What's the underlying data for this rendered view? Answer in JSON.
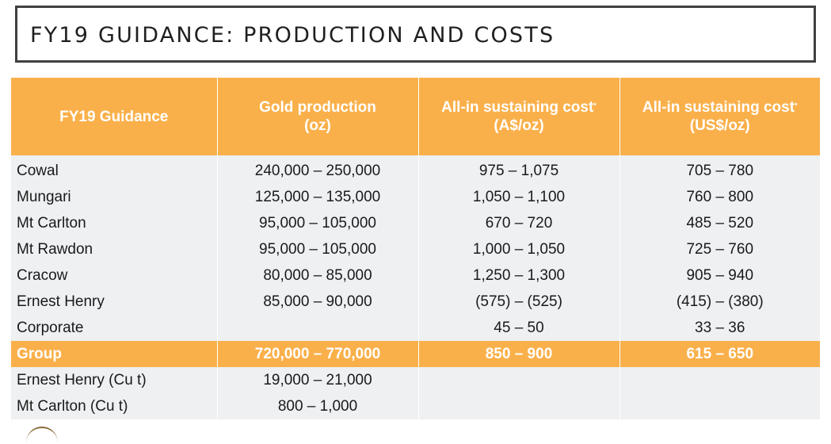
{
  "title": "FY19 GUIDANCE: PRODUCTION AND COSTS",
  "table": {
    "headers": [
      {
        "line1": "FY19 Guidance",
        "line2": "",
        "sup": ""
      },
      {
        "line1": "Gold production",
        "line2": "(oz)",
        "sup": ""
      },
      {
        "line1": "All-in sustaining cost",
        "line2": "(A$/oz)",
        "sup": "*"
      },
      {
        "line1": "All-in sustaining cost",
        "line2": "(US$/oz)",
        "sup": "*"
      }
    ],
    "rows": [
      {
        "name": "Cowal",
        "gold": "240,000 – 250,000",
        "aud": "975 – 1,075",
        "usd": "705 – 780"
      },
      {
        "name": "Mungari",
        "gold": "125,000 – 135,000",
        "aud": "1,050 – 1,100",
        "usd": "760 – 800"
      },
      {
        "name": "Mt Carlton",
        "gold": "95,000 – 105,000",
        "aud": "670 – 720",
        "usd": "485 – 520"
      },
      {
        "name": "Mt Rawdon",
        "gold": "95,000 – 105,000",
        "aud": "1,000 – 1,050",
        "usd": "725 – 760"
      },
      {
        "name": "Cracow",
        "gold": "80,000 – 85,000",
        "aud": "1,250 – 1,300",
        "usd": "905 – 940"
      },
      {
        "name": "Ernest Henry",
        "gold": "85,000 – 90,000",
        "aud": "(575) – (525)",
        "usd": "(415) – (380)"
      },
      {
        "name": "Corporate",
        "gold": "",
        "aud": "45 – 50",
        "usd": "33 – 36"
      },
      {
        "name": "Group",
        "gold": "720,000 – 770,000",
        "aud": "850 – 900",
        "usd": "615 – 650"
      },
      {
        "name": "Ernest Henry (Cu t)",
        "gold": "19,000 – 21,000",
        "aud": "",
        "usd": ""
      },
      {
        "name": "Mt Carlton (Cu t)",
        "gold": "800 – 1,000",
        "aud": "",
        "usd": ""
      }
    ]
  }
}
